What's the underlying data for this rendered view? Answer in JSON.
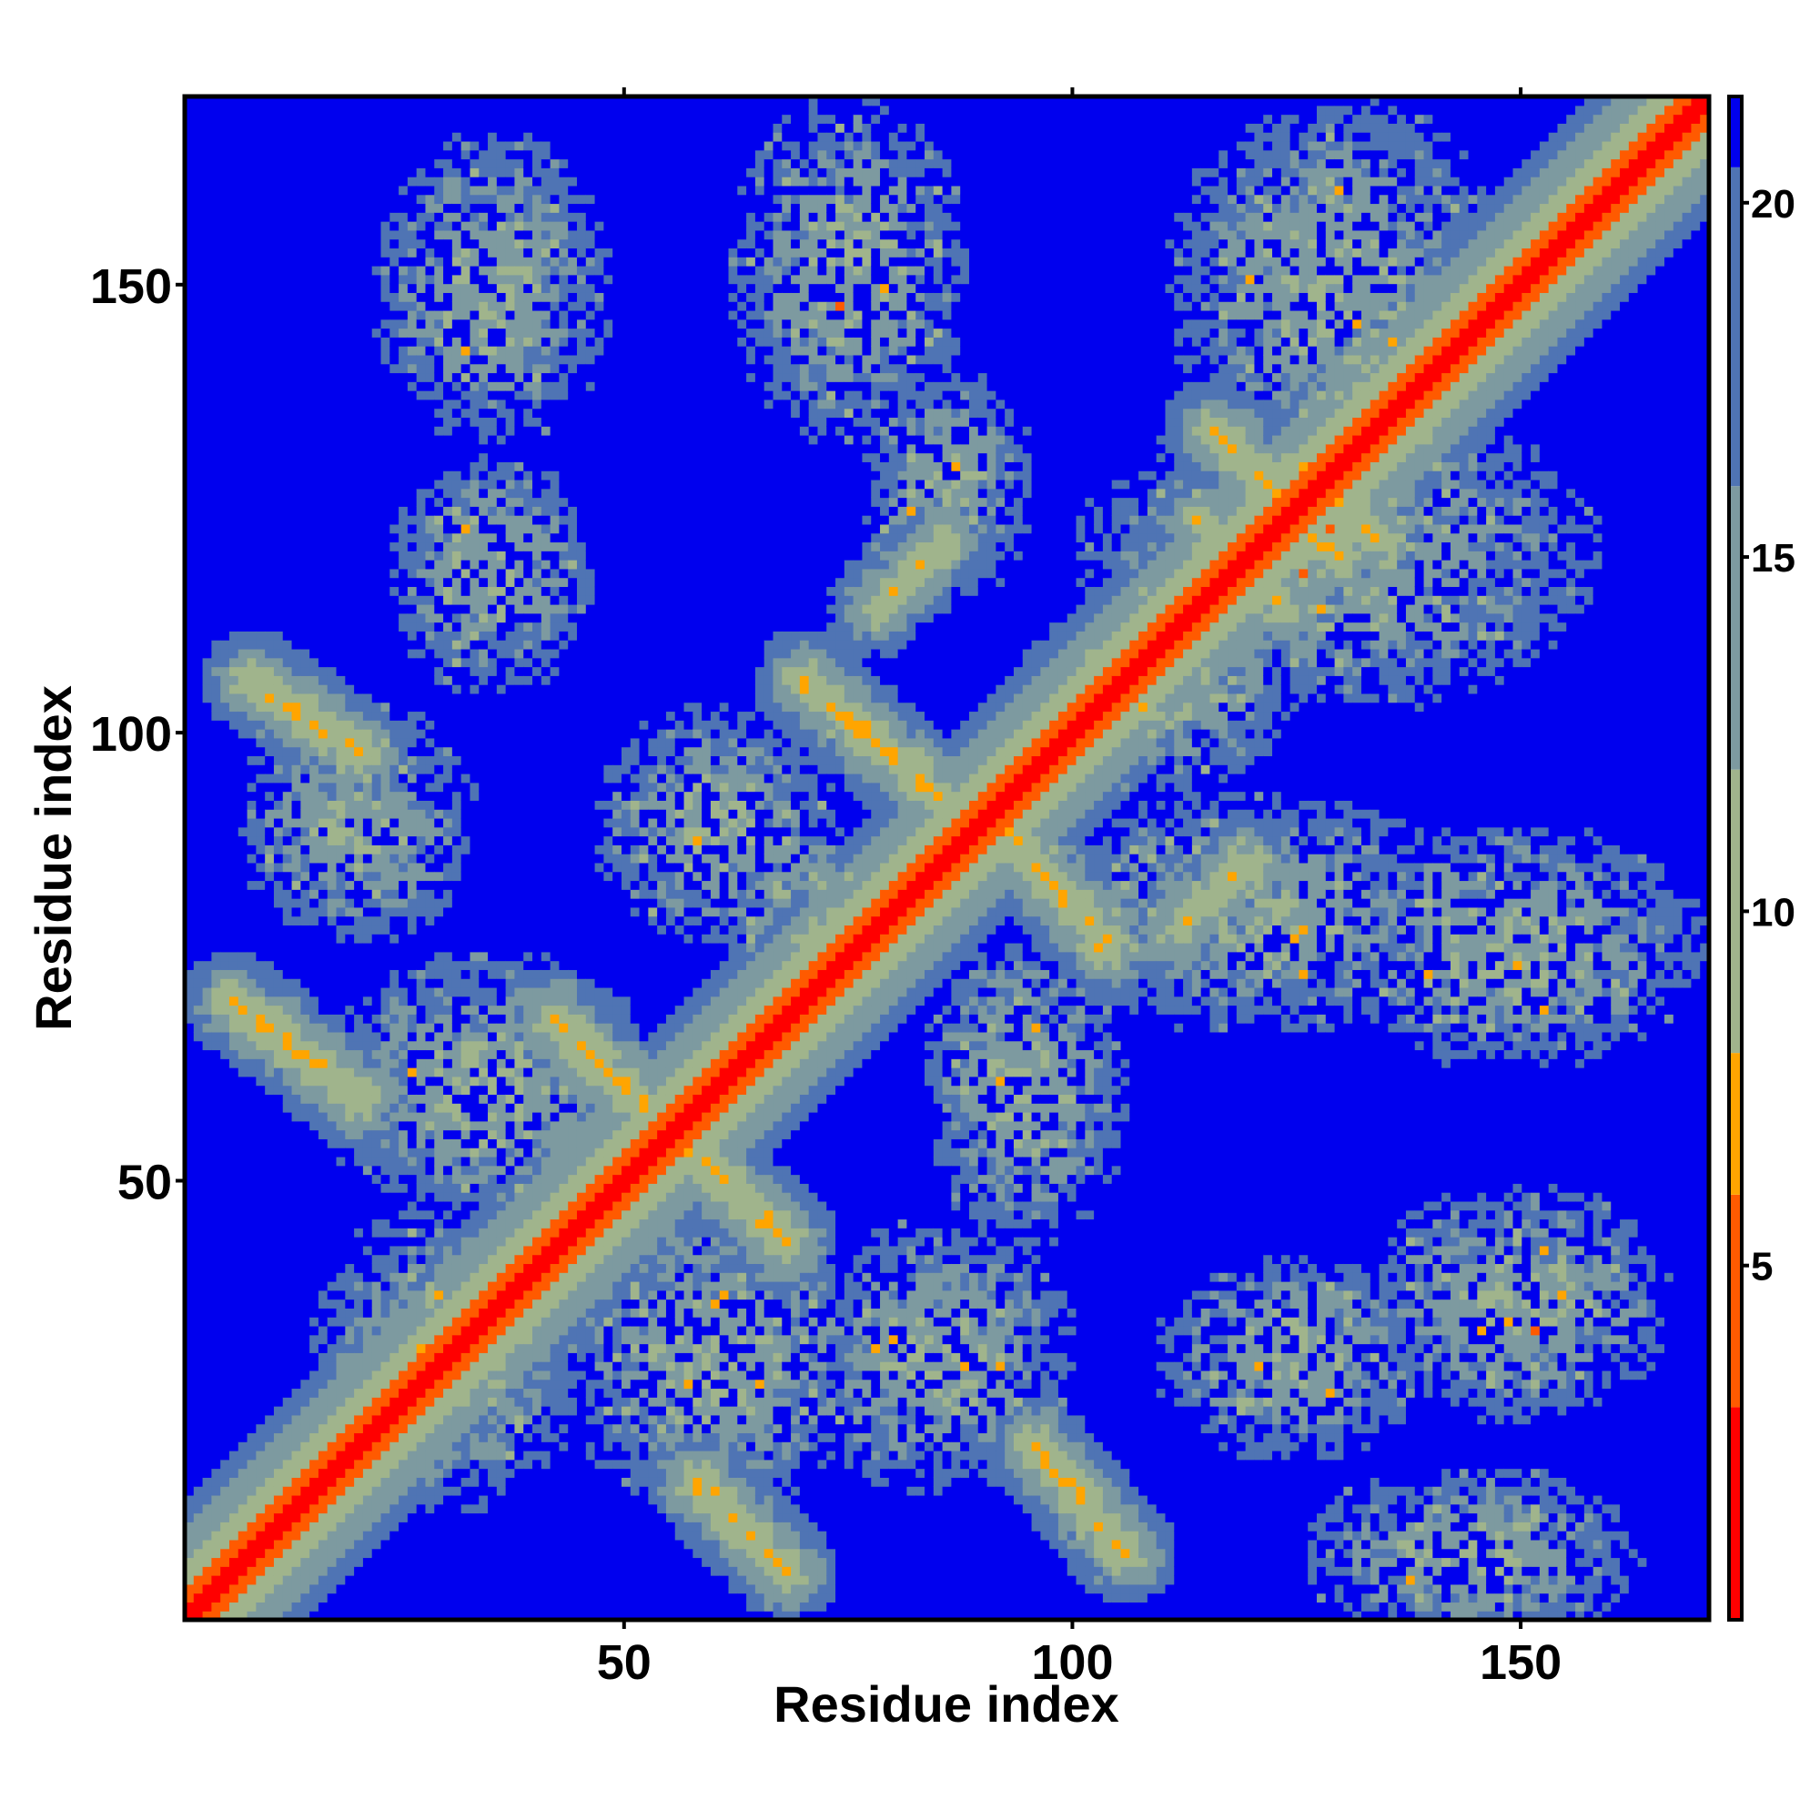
{
  "chart_data": {
    "type": "heatmap",
    "title": "",
    "xlabel": "Residue index",
    "ylabel": "Residue index",
    "n_residues": 171,
    "xlim": [
      1,
      171
    ],
    "ylim": [
      1,
      171
    ],
    "x_ticks": [
      50,
      100,
      150
    ],
    "y_ticks": [
      50,
      100,
      150
    ],
    "colorbar": {
      "ticks": [
        5,
        10,
        15,
        20
      ],
      "range": [
        0,
        21.5
      ],
      "colors": [
        {
          "max": 3,
          "color": "#ff0000"
        },
        {
          "max": 6,
          "color": "#ff5a00"
        },
        {
          "max": 8,
          "color": "#ffa500"
        },
        {
          "max": 12,
          "color": "#a0b48c"
        },
        {
          "max": 16,
          "color": "#7d9aa0"
        },
        {
          "max": 20.5,
          "color": "#4f74b4"
        },
        {
          "max": 99,
          "color": "#0000ee"
        }
      ]
    },
    "diagonal_band": {
      "value_at_diagonal": 0,
      "band_width": 14
    },
    "contact_features": [
      {
        "kind": "antiparallel",
        "x": [
          8,
          20
        ],
        "y": [
          106,
          98
        ],
        "value": 6
      },
      {
        "kind": "antiparallel",
        "x": [
          6,
          20
        ],
        "y": [
          70,
          59
        ],
        "value": 6
      },
      {
        "kind": "antiparallel",
        "x": [
          42,
          56
        ],
        "y": [
          68,
          54
        ],
        "value": 6
      },
      {
        "kind": "antiparallel",
        "x": [
          54,
          68
        ],
        "y": [
          56,
          43
        ],
        "value": 6
      },
      {
        "kind": "antiparallel",
        "x": [
          58,
          68
        ],
        "y": [
          16,
          6
        ],
        "value": 6
      },
      {
        "kind": "antiparallel",
        "x": [
          96,
          106
        ],
        "y": [
          20,
          8
        ],
        "value": 6
      },
      {
        "kind": "antiparallel",
        "x": [
          70,
          86
        ],
        "y": [
          106,
          92
        ],
        "value": 6
      },
      {
        "kind": "antiparallel",
        "x": [
          92,
          104
        ],
        "y": [
          90,
          76
        ],
        "value": 6
      },
      {
        "kind": "parallel",
        "x": [
          78,
          86
        ],
        "y": [
          114,
          122
        ],
        "value": 7
      },
      {
        "kind": "parallel",
        "x": [
          112,
          120
        ],
        "y": [
          78,
          86
        ],
        "value": 7
      },
      {
        "kind": "antiparallel",
        "x": [
          116,
          130
        ],
        "y": [
          134,
          120
        ],
        "value": 6
      },
      {
        "kind": "antiparallel",
        "x": [
          126,
          134
        ],
        "y": [
          130,
          122
        ],
        "value": 6
      },
      {
        "kind": "antiparallel",
        "x": [
          114,
          124
        ],
        "y": [
          124,
          114
        ],
        "value": 7
      }
    ],
    "contact_clusters": [
      {
        "cx": 35,
        "cy": 150,
        "rx": 14,
        "ry": 18
      },
      {
        "cx": 75,
        "cy": 152,
        "rx": 14,
        "ry": 20
      },
      {
        "cx": 35,
        "cy": 118,
        "rx": 12,
        "ry": 14
      },
      {
        "cx": 86,
        "cy": 128,
        "rx": 10,
        "ry": 14
      },
      {
        "cx": 130,
        "cy": 150,
        "rx": 20,
        "ry": 22
      },
      {
        "cx": 130,
        "cy": 120,
        "rx": 30,
        "ry": 18
      },
      {
        "cx": 150,
        "cy": 76,
        "rx": 22,
        "ry": 14
      },
      {
        "cx": 120,
        "cy": 80,
        "rx": 26,
        "ry": 14
      },
      {
        "cx": 150,
        "cy": 36,
        "rx": 18,
        "ry": 14
      },
      {
        "cx": 125,
        "cy": 30,
        "rx": 16,
        "ry": 12
      },
      {
        "cx": 145,
        "cy": 8,
        "rx": 20,
        "ry": 10
      },
      {
        "cx": 20,
        "cy": 90,
        "rx": 14,
        "ry": 14
      },
      {
        "cx": 35,
        "cy": 60,
        "rx": 20,
        "ry": 16
      },
      {
        "cx": 30,
        "cy": 30,
        "rx": 16,
        "ry": 18
      },
      {
        "cx": 60,
        "cy": 30,
        "rx": 18,
        "ry": 18
      },
      {
        "cx": 85,
        "cy": 30,
        "rx": 16,
        "ry": 16
      },
      {
        "cx": 60,
        "cy": 90,
        "rx": 14,
        "ry": 14
      },
      {
        "cx": 95,
        "cy": 60,
        "rx": 12,
        "ry": 18
      },
      {
        "cx": 110,
        "cy": 105,
        "rx": 16,
        "ry": 12
      },
      {
        "cx": 70,
        "cy": 80,
        "rx": 10,
        "ry": 10
      }
    ]
  }
}
